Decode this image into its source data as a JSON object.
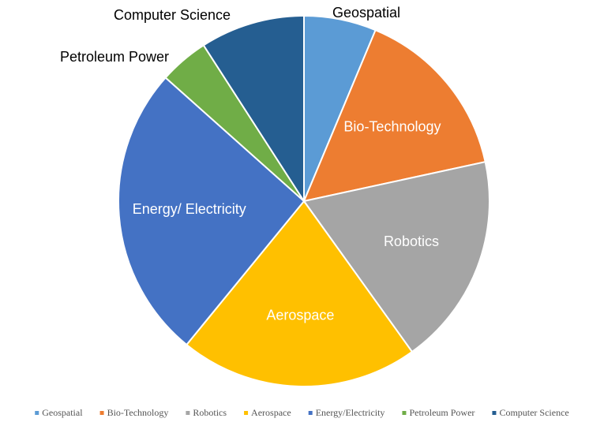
{
  "chart_data": {
    "type": "pie",
    "categories": [
      "Geospatial",
      "Bio-Technology",
      "Robotics",
      "Aerospace",
      "Energy/Electricity",
      "Petroleum Power",
      "Computer Science"
    ],
    "slice_labels": [
      "Geospatial",
      "Bio-Technology",
      "Robotics",
      "Aerospace",
      "Energy/ Electricity",
      "Petroleum Power",
      "Computer Science"
    ],
    "values": [
      6.3,
      15.3,
      18.5,
      20.8,
      25.7,
      4.3,
      9.1
    ],
    "colors": [
      "#5b9bd5",
      "#ed7d31",
      "#a5a5a5",
      "#ffc000",
      "#4472c4",
      "#70ad47",
      "#255e91"
    ],
    "legend": "bottom"
  }
}
